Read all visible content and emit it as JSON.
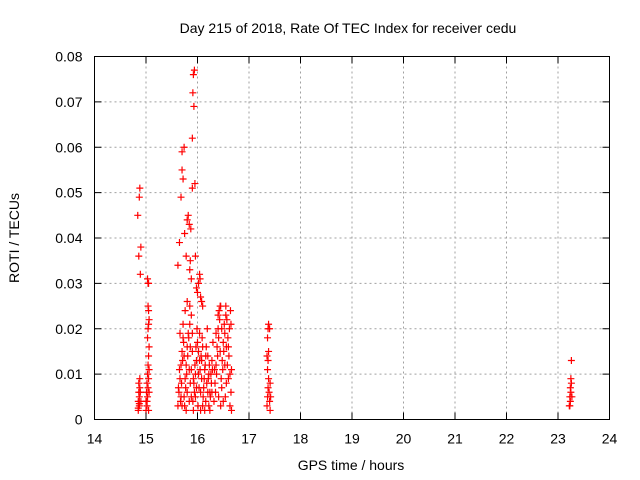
{
  "chart_data": {
    "type": "scatter",
    "title": "Day 215 of 2018, Rate Of TEC Index for receiver cedu",
    "xlabel": "GPS time / hours",
    "ylabel": "ROTI / TECUs",
    "xlim": [
      14,
      24
    ],
    "ylim": [
      0,
      0.08
    ],
    "x_ticks": [
      "14",
      "15",
      "16",
      "17",
      "18",
      "19",
      "20",
      "21",
      "22",
      "23",
      "24"
    ],
    "y_ticks": [
      "0",
      "0.01",
      "0.02",
      "0.03",
      "0.04",
      "0.05",
      "0.06",
      "0.07",
      "0.08"
    ],
    "grid": true,
    "marker": "+",
    "colors": {
      "points": "#ff0000",
      "grid": "#a0a0a0",
      "frame": "#000000"
    },
    "series": [
      {
        "points": [
          [
            14.85,
            0.002
          ],
          [
            14.85,
            0.004
          ],
          [
            14.86,
            0.006
          ],
          [
            14.86,
            0.008
          ],
          [
            14.87,
            0.003
          ],
          [
            14.87,
            0.005
          ],
          [
            14.88,
            0.007
          ],
          [
            14.88,
            0.009
          ],
          [
            14.84,
            0.045
          ],
          [
            14.86,
            0.036
          ],
          [
            14.87,
            0.049
          ],
          [
            14.88,
            0.051
          ],
          [
            14.89,
            0.032
          ],
          [
            14.9,
            0.038
          ],
          [
            14.85,
            0.0025
          ],
          [
            14.87,
            0.0035
          ],
          [
            14.89,
            0.006
          ],
          [
            14.9,
            0.004
          ],
          [
            15.0,
            0.002
          ],
          [
            15.0,
            0.004
          ],
          [
            15.01,
            0.006
          ],
          [
            15.02,
            0.008
          ],
          [
            15.03,
            0.01
          ],
          [
            15.02,
            0.003
          ],
          [
            15.03,
            0.005
          ],
          [
            15.04,
            0.007
          ],
          [
            15.05,
            0.009
          ],
          [
            15.06,
            0.011
          ],
          [
            15.04,
            0.012
          ],
          [
            15.05,
            0.014
          ],
          [
            15.06,
            0.016
          ],
          [
            15.03,
            0.018
          ],
          [
            15.04,
            0.02
          ],
          [
            15.05,
            0.021
          ],
          [
            15.06,
            0.022
          ],
          [
            15.04,
            0.025
          ],
          [
            15.05,
            0.024
          ],
          [
            15.03,
            0.031
          ],
          [
            15.04,
            0.03
          ],
          [
            15.05,
            0.03
          ],
          [
            15.02,
            0.004
          ],
          [
            15.05,
            0.002
          ],
          [
            15.06,
            0.006
          ],
          [
            15.62,
            0.034
          ],
          [
            15.65,
            0.039
          ],
          [
            15.68,
            0.049
          ],
          [
            15.7,
            0.055
          ],
          [
            15.7,
            0.059
          ],
          [
            15.72,
            0.053
          ],
          [
            15.74,
            0.06
          ],
          [
            15.75,
            0.041
          ],
          [
            15.78,
            0.036
          ],
          [
            15.8,
            0.044
          ],
          [
            15.82,
            0.045
          ],
          [
            15.84,
            0.043
          ],
          [
            15.85,
            0.033
          ],
          [
            15.86,
            0.035
          ],
          [
            15.87,
            0.042
          ],
          [
            15.88,
            0.031
          ],
          [
            15.9,
            0.051
          ],
          [
            15.9,
            0.062
          ],
          [
            15.91,
            0.072
          ],
          [
            15.92,
            0.076
          ],
          [
            15.93,
            0.069
          ],
          [
            15.94,
            0.077
          ],
          [
            15.95,
            0.052
          ],
          [
            15.96,
            0.036
          ],
          [
            15.98,
            0.029
          ],
          [
            16.0,
            0.028
          ],
          [
            16.02,
            0.03
          ],
          [
            16.04,
            0.032
          ],
          [
            16.05,
            0.031
          ],
          [
            16.06,
            0.027
          ],
          [
            16.08,
            0.026
          ],
          [
            16.1,
            0.025
          ],
          [
            15.8,
            0.026
          ],
          [
            15.85,
            0.025
          ],
          [
            15.88,
            0.023
          ],
          [
            15.76,
            0.024
          ],
          [
            15.62,
            0.003
          ],
          [
            15.64,
            0.006
          ],
          [
            15.66,
            0.009
          ],
          [
            15.68,
            0.012
          ],
          [
            15.7,
            0.015
          ],
          [
            15.72,
            0.018
          ],
          [
            15.63,
            0.007
          ],
          [
            15.65,
            0.011
          ],
          [
            15.67,
            0.004
          ],
          [
            15.69,
            0.008
          ],
          [
            15.71,
            0.013
          ],
          [
            15.73,
            0.017
          ],
          [
            15.75,
            0.003
          ],
          [
            15.77,
            0.007
          ],
          [
            15.79,
            0.01
          ],
          [
            15.81,
            0.014
          ],
          [
            15.83,
            0.018
          ],
          [
            15.85,
            0.021
          ],
          [
            15.74,
            0.005
          ],
          [
            15.76,
            0.009
          ],
          [
            15.78,
            0.012
          ],
          [
            15.8,
            0.016
          ],
          [
            15.82,
            0.019
          ],
          [
            15.84,
            0.004
          ],
          [
            15.86,
            0.008
          ],
          [
            15.88,
            0.011
          ],
          [
            15.9,
            0.015
          ],
          [
            15.92,
            0.002
          ],
          [
            15.94,
            0.006
          ],
          [
            15.96,
            0.01
          ],
          [
            15.98,
            0.013
          ],
          [
            16.0,
            0.017
          ],
          [
            15.91,
            0.004
          ],
          [
            15.93,
            0.008
          ],
          [
            15.95,
            0.012
          ],
          [
            15.97,
            0.016
          ],
          [
            15.99,
            0.02
          ],
          [
            16.01,
            0.003
          ],
          [
            16.03,
            0.007
          ],
          [
            16.05,
            0.011
          ],
          [
            16.07,
            0.014
          ],
          [
            16.09,
            0.018
          ],
          [
            16.11,
            0.005
          ],
          [
            16.13,
            0.009
          ],
          [
            16.15,
            0.012
          ],
          [
            16.17,
            0.016
          ],
          [
            16.19,
            0.02
          ],
          [
            16.02,
            0.01
          ],
          [
            16.04,
            0.013
          ],
          [
            16.06,
            0.006
          ],
          [
            16.08,
            0.009
          ],
          [
            16.1,
            0.003
          ],
          [
            16.12,
            0.007
          ],
          [
            16.14,
            0.011
          ],
          [
            16.16,
            0.004
          ],
          [
            16.18,
            0.008
          ],
          [
            16.2,
            0.014
          ],
          [
            16.22,
            0.003
          ],
          [
            16.24,
            0.006
          ],
          [
            16.26,
            0.01
          ],
          [
            16.28,
            0.013
          ],
          [
            16.3,
            0.017
          ],
          [
            16.21,
            0.009
          ],
          [
            16.23,
            0.012
          ],
          [
            16.25,
            0.005
          ],
          [
            16.27,
            0.008
          ],
          [
            16.29,
            0.011
          ],
          [
            15.66,
            0.019
          ],
          [
            15.72,
            0.021
          ],
          [
            15.78,
            0.002
          ],
          [
            15.84,
            0.011
          ],
          [
            15.9,
            0.019
          ],
          [
            15.96,
            0.005
          ],
          [
            16.02,
            0.015
          ],
          [
            16.08,
            0.013
          ],
          [
            16.14,
            0.002
          ],
          [
            16.2,
            0.006
          ],
          [
            15.68,
            0.005
          ],
          [
            15.74,
            0.014
          ],
          [
            15.8,
            0.006
          ],
          [
            15.86,
            0.016
          ],
          [
            15.92,
            0.009
          ],
          [
            15.98,
            0.007
          ],
          [
            16.04,
            0.019
          ],
          [
            16.1,
            0.016
          ],
          [
            16.16,
            0.014
          ],
          [
            16.22,
            0.01
          ],
          [
            16.28,
            0.006
          ],
          [
            15.7,
            0.003
          ],
          [
            15.88,
            0.005
          ],
          [
            16.06,
            0.002
          ],
          [
            16.24,
            0.002
          ],
          [
            16.32,
            0.004
          ],
          [
            16.34,
            0.008
          ],
          [
            16.36,
            0.012
          ],
          [
            16.38,
            0.016
          ],
          [
            16.4,
            0.02
          ],
          [
            16.42,
            0.024
          ],
          [
            16.44,
            0.025
          ],
          [
            16.35,
            0.006
          ],
          [
            16.37,
            0.01
          ],
          [
            16.39,
            0.014
          ],
          [
            16.41,
            0.018
          ],
          [
            16.43,
            0.022
          ],
          [
            16.45,
            0.003
          ],
          [
            16.47,
            0.007
          ],
          [
            16.49,
            0.011
          ],
          [
            16.51,
            0.015
          ],
          [
            16.53,
            0.019
          ],
          [
            16.55,
            0.023
          ],
          [
            16.46,
            0.009
          ],
          [
            16.48,
            0.013
          ],
          [
            16.5,
            0.017
          ],
          [
            16.52,
            0.021
          ],
          [
            16.54,
            0.005
          ],
          [
            16.56,
            0.008
          ],
          [
            16.58,
            0.012
          ],
          [
            16.6,
            0.016
          ],
          [
            16.62,
            0.02
          ],
          [
            16.64,
            0.024
          ],
          [
            16.66,
            0.002
          ],
          [
            16.65,
            0.006
          ],
          [
            16.63,
            0.01
          ],
          [
            16.61,
            0.014
          ],
          [
            16.59,
            0.018
          ],
          [
            16.57,
            0.022
          ],
          [
            16.33,
            0.011
          ],
          [
            16.36,
            0.019
          ],
          [
            16.41,
            0.005
          ],
          [
            16.44,
            0.015
          ],
          [
            16.47,
            0.02
          ],
          [
            16.5,
            0.004
          ],
          [
            16.53,
            0.012
          ],
          [
            16.56,
            0.016
          ],
          [
            16.6,
            0.009
          ],
          [
            16.63,
            0.003
          ],
          [
            16.66,
            0.011
          ],
          [
            16.4,
            0.023
          ],
          [
            16.45,
            0.025
          ],
          [
            16.55,
            0.025
          ],
          [
            16.65,
            0.021
          ],
          [
            17.35,
            0.003
          ],
          [
            17.36,
            0.005
          ],
          [
            17.37,
            0.007
          ],
          [
            17.38,
            0.009
          ],
          [
            17.36,
            0.011
          ],
          [
            17.37,
            0.013
          ],
          [
            17.38,
            0.015
          ],
          [
            17.36,
            0.018
          ],
          [
            17.37,
            0.02
          ],
          [
            17.38,
            0.021
          ],
          [
            17.4,
            0.02
          ],
          [
            17.39,
            0.006
          ],
          [
            17.4,
            0.004
          ],
          [
            17.41,
            0.008
          ],
          [
            17.35,
            0.014
          ],
          [
            17.41,
            0.002
          ],
          [
            17.42,
            0.005
          ],
          [
            23.22,
            0.003
          ],
          [
            23.23,
            0.005
          ],
          [
            23.24,
            0.007
          ],
          [
            23.25,
            0.009
          ],
          [
            23.26,
            0.013
          ],
          [
            23.24,
            0.004
          ],
          [
            23.25,
            0.006
          ],
          [
            23.26,
            0.008
          ],
          [
            23.27,
            0.005
          ],
          [
            23.23,
            0.003
          ]
        ]
      }
    ]
  }
}
